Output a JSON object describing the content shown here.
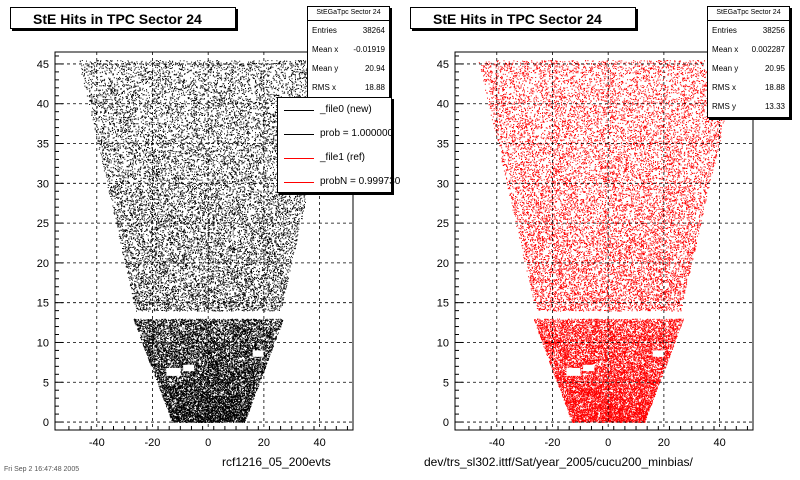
{
  "chart_data": [
    {
      "type": "scatter",
      "title": "StE Hits in TPC Sector 24",
      "caption": "rcf1216_05_200evts",
      "color": "#000000",
      "xlim": [
        -55,
        52
      ],
      "ylim": [
        -1,
        46.5
      ],
      "xticks": [
        -40,
        -20,
        0,
        20,
        40
      ],
      "yticks": [
        0,
        5,
        10,
        15,
        20,
        25,
        30,
        35,
        40,
        45
      ],
      "grid": true,
      "stats": {
        "name": "StEGaTpc Sector 24",
        "rows": [
          {
            "label": "Entries",
            "value": "38264"
          },
          {
            "label": "Mean x",
            "value": "-0.01919"
          },
          {
            "label": "Mean y",
            "value": "20.94"
          },
          {
            "label": "RMS x",
            "value": "18.88"
          }
        ]
      },
      "legend": {
        "placement": "top-right",
        "entries": [
          {
            "label": "_file0 (new)",
            "color": "#000000"
          },
          {
            "label": "prob = 1.000000",
            "color": "#000000"
          },
          {
            "label": "_file1 (ref)",
            "color": "#ff0000"
          },
          {
            "label": "probN = 0.999730",
            "color": "#ff0000"
          }
        ]
      }
    },
    {
      "type": "scatter",
      "title": "StE Hits in TPC Sector 24",
      "caption": "dev/trs_sl302.ittf/Sat/year_2005/cucu200_minbias/",
      "color": "#ff0000",
      "xlim": [
        -55,
        52
      ],
      "ylim": [
        -1,
        46.5
      ],
      "xticks": [
        -40,
        -20,
        0,
        20,
        40
      ],
      "yticks": [
        0,
        5,
        10,
        15,
        20,
        25,
        30,
        35,
        40,
        45
      ],
      "grid": true,
      "stats": {
        "name": "StEGaTpc Sector 24",
        "rows": [
          {
            "label": "Entries",
            "value": "38256"
          },
          {
            "label": "Mean x",
            "value": "0.002287"
          },
          {
            "label": "Mean y",
            "value": "20.95"
          },
          {
            "label": "RMS x",
            "value": "18.88"
          },
          {
            "label": "RMS y",
            "value": "13.33"
          }
        ]
      }
    }
  ],
  "footer": "Fri Sep 2 16:47:48 2005"
}
